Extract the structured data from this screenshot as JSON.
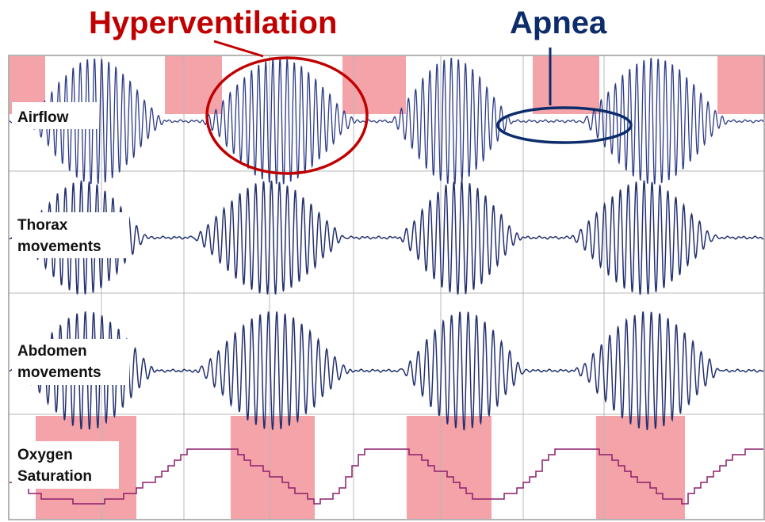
{
  "annotations": {
    "hyperventilation": {
      "label": "Hyperventilation",
      "color": "#c00000"
    },
    "apnea": {
      "label": "Apnea",
      "color": "#0d2c6b"
    }
  },
  "channels": {
    "airflow": {
      "label": "Airflow"
    },
    "thorax": {
      "label_line1": "Thorax",
      "label_line2": "movements"
    },
    "abdomen": {
      "label_line1": "Abdomen",
      "label_line2": "movements"
    },
    "oxygen": {
      "label_line1": "Oxygen",
      "label_line2": "Saturation"
    }
  },
  "colors": {
    "trace": "#2b3a86",
    "spo2": "#8b1f6b",
    "highlight": "#f4a3a8",
    "grid": "#b8b8b8",
    "frame": "#9a9a9a"
  }
}
